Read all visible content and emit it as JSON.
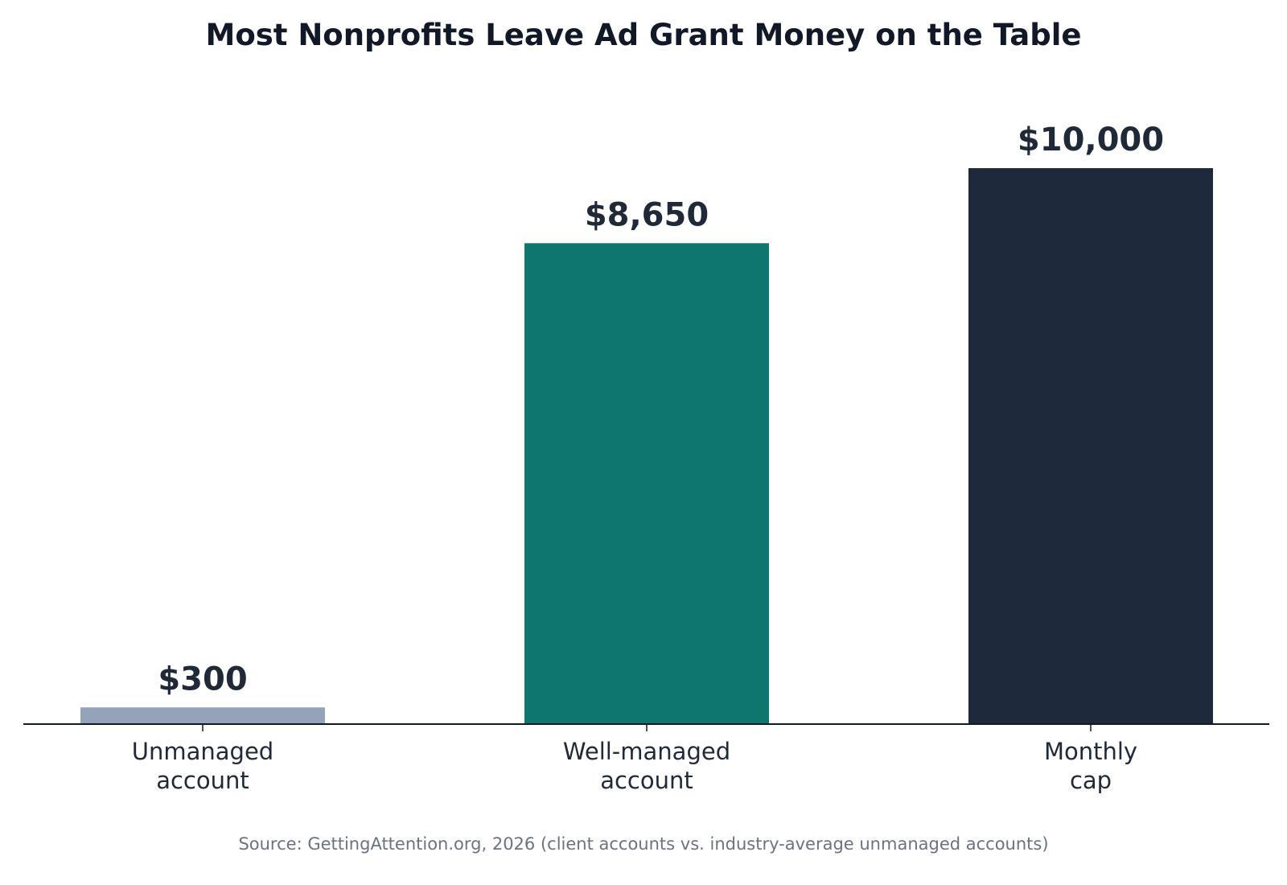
{
  "chart_data": {
    "type": "bar",
    "title": "Most Nonprofits Leave Ad Grant Money on the Table",
    "categories": [
      "Unmanaged\naccount",
      "Well-managed\naccount",
      "Monthly\ncap"
    ],
    "values": [
      300,
      8650,
      10000
    ],
    "value_labels": [
      "$300",
      "$8,650",
      "$10,000"
    ],
    "colors": [
      "#94a3b8",
      "#0f766e",
      "#1e293b"
    ],
    "xlabel": "",
    "ylabel": "",
    "ylim": [
      0,
      10000
    ],
    "grid": false,
    "y_axis_visible": false
  },
  "source": "Source: GettingAttention.org, 2026 (client accounts vs. industry-average unmanaged accounts)"
}
